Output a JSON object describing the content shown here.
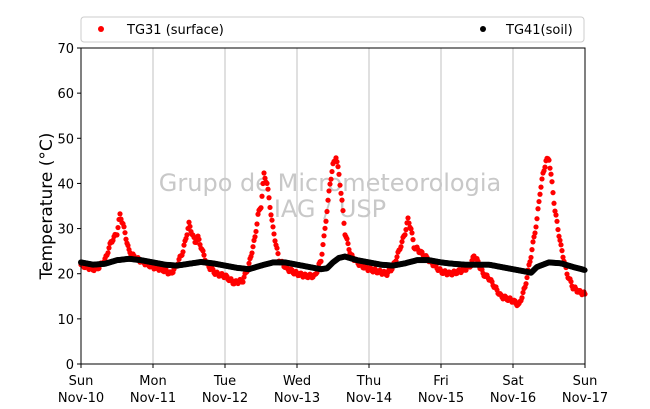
{
  "chart_data": {
    "type": "scatter",
    "title": "",
    "xlabel": "",
    "ylabel": "Temperature (°C)",
    "ylim": [
      0,
      70
    ],
    "yticks": [
      0,
      10,
      20,
      30,
      40,
      50,
      60,
      70
    ],
    "xlim_days": [
      0,
      7
    ],
    "xticks": [
      {
        "day": "Sun",
        "date": "Nov-10"
      },
      {
        "day": "Mon",
        "date": "Nov-11"
      },
      {
        "day": "Tue",
        "date": "Nov-12"
      },
      {
        "day": "Wed",
        "date": "Nov-13"
      },
      {
        "day": "Thu",
        "date": "Nov-14"
      },
      {
        "day": "Fri",
        "date": "Nov-15"
      },
      {
        "day": "Sat",
        "date": "Nov-16"
      },
      {
        "day": "Sun",
        "date": "Nov-17"
      }
    ],
    "grid": "vertical",
    "legend_position": "top",
    "watermark": [
      "Grupo de Micrometeorologia",
      "IAG / USP"
    ],
    "series": [
      {
        "name": "TG31 (surface)",
        "color": "#ff0000",
        "points": [
          [
            "Nov-10 00:00",
            22
          ],
          [
            "Nov-10 02:00",
            21.5
          ],
          [
            "Nov-10 04:00",
            21
          ],
          [
            "Nov-10 06:00",
            21.5
          ],
          [
            "Nov-10 08:00",
            23
          ],
          [
            "Nov-10 10:00",
            27
          ],
          [
            "Nov-10 12:00",
            29
          ],
          [
            "Nov-10 13:00",
            33
          ],
          [
            "Nov-10 14:00",
            31
          ],
          [
            "Nov-10 16:00",
            25
          ],
          [
            "Nov-10 18:00",
            23.5
          ],
          [
            "Nov-10 21:00",
            22.5
          ],
          [
            "Nov-11 00:00",
            21.5
          ],
          [
            "Nov-11 03:00",
            21
          ],
          [
            "Nov-11 06:00",
            20
          ],
          [
            "Nov-11 08:00",
            22
          ],
          [
            "Nov-11 10:00",
            25
          ],
          [
            "Nov-11 11:00",
            28
          ],
          [
            "Nov-11 12:00",
            31
          ],
          [
            "Nov-11 13:00",
            29
          ],
          [
            "Nov-11 14:00",
            27
          ],
          [
            "Nov-11 15:00",
            28
          ],
          [
            "Nov-11 16:00",
            26
          ],
          [
            "Nov-11 18:00",
            22
          ],
          [
            "Nov-11 21:00",
            20
          ],
          [
            "Nov-12 00:00",
            19.5
          ],
          [
            "Nov-12 03:00",
            18
          ],
          [
            "Nov-12 06:00",
            18.5
          ],
          [
            "Nov-12 08:00",
            22
          ],
          [
            "Nov-12 10:00",
            28
          ],
          [
            "Nov-12 11:00",
            33
          ],
          [
            "Nov-12 12:00",
            35
          ],
          [
            "Nov-12 13:00",
            42
          ],
          [
            "Nov-12 14:00",
            40
          ],
          [
            "Nov-12 16:00",
            30
          ],
          [
            "Nov-12 18:00",
            23
          ],
          [
            "Nov-12 21:00",
            21
          ],
          [
            "Nov-13 00:00",
            20
          ],
          [
            "Nov-13 03:00",
            19.5
          ],
          [
            "Nov-13 06:00",
            19.5
          ],
          [
            "Nov-13 08:00",
            23
          ],
          [
            "Nov-13 09:00",
            28
          ],
          [
            "Nov-13 10:00",
            34
          ],
          [
            "Nov-13 11:00",
            40
          ],
          [
            "Nov-13 12:00",
            44
          ],
          [
            "Nov-13 13:00",
            46
          ],
          [
            "Nov-13 14:00",
            42
          ],
          [
            "Nov-13 15:00",
            36
          ],
          [
            "Nov-13 16:00",
            29
          ],
          [
            "Nov-13 18:00",
            24
          ],
          [
            "Nov-13 21:00",
            22
          ],
          [
            "Nov-14 00:00",
            21
          ],
          [
            "Nov-14 03:00",
            20.5
          ],
          [
            "Nov-14 06:00",
            20
          ],
          [
            "Nov-14 08:00",
            21.5
          ],
          [
            "Nov-14 10:00",
            25
          ],
          [
            "Nov-14 11:00",
            27
          ],
          [
            "Nov-14 12:00",
            29
          ],
          [
            "Nov-14 13:00",
            32
          ],
          [
            "Nov-14 14:00",
            30
          ],
          [
            "Nov-14 15:00",
            26
          ],
          [
            "Nov-14 16:00",
            25.5
          ],
          [
            "Nov-15 00:00",
            20.5
          ],
          [
            "Nov-15 03:00",
            20
          ],
          [
            "Nov-15 06:00",
            20.5
          ],
          [
            "Nov-15 08:00",
            21
          ],
          [
            "Nov-15 10:00",
            22
          ],
          [
            "Nov-15 11:00",
            24
          ],
          [
            "Nov-15 12:00",
            23
          ],
          [
            "Nov-15 14:00",
            20
          ],
          [
            "Nov-15 16:00",
            19
          ],
          [
            "Nov-15 18:00",
            17
          ],
          [
            "Nov-15 20:00",
            15
          ],
          [
            "Nov-15 22:00",
            14.5
          ],
          [
            "Nov-16 00:00",
            14
          ],
          [
            "Nov-16 01:00",
            13.5
          ],
          [
            "Nov-16 02:00",
            13
          ],
          [
            "Nov-16 04:00",
            17
          ],
          [
            "Nov-16 06:00",
            24
          ],
          [
            "Nov-16 08:00",
            32
          ],
          [
            "Nov-16 09:00",
            38
          ],
          [
            "Nov-16 10:00",
            42
          ],
          [
            "Nov-16 11:00",
            45
          ],
          [
            "Nov-16 12:00",
            45.5
          ],
          [
            "Nov-16 13:00",
            40
          ],
          [
            "Nov-16 14:00",
            34
          ],
          [
            "Nov-16 16:00",
            26
          ],
          [
            "Nov-16 18:00",
            20
          ],
          [
            "Nov-16 20:00",
            17
          ],
          [
            "Nov-16 22:00",
            16
          ],
          [
            "Nov-17 00:00",
            15.5
          ]
        ]
      },
      {
        "name": "TG41(soil)",
        "color": "#000000",
        "points": [
          [
            "Nov-10 00:00",
            22.5
          ],
          [
            "Nov-10 04:00",
            22
          ],
          [
            "Nov-10 08:00",
            22.2
          ],
          [
            "Nov-10 12:00",
            23
          ],
          [
            "Nov-10 16:00",
            23.3
          ],
          [
            "Nov-10 20:00",
            23
          ],
          [
            "Nov-11 00:00",
            22.5
          ],
          [
            "Nov-11 04:00",
            22
          ],
          [
            "Nov-11 08:00",
            21.8
          ],
          [
            "Nov-11 12:00",
            22.2
          ],
          [
            "Nov-11 16:00",
            22.6
          ],
          [
            "Nov-11 20:00",
            22.3
          ],
          [
            "Nov-12 00:00",
            21.8
          ],
          [
            "Nov-12 04:00",
            21.3
          ],
          [
            "Nov-12 08:00",
            21
          ],
          [
            "Nov-12 12:00",
            21.8
          ],
          [
            "Nov-12 16:00",
            22.5
          ],
          [
            "Nov-12 20:00",
            22.5
          ],
          [
            "Nov-13 00:00",
            22
          ],
          [
            "Nov-13 04:00",
            21.5
          ],
          [
            "Nov-13 08:00",
            21
          ],
          [
            "Nov-13 10:00",
            21.2
          ],
          [
            "Nov-13 12:00",
            22.5
          ],
          [
            "Nov-13 14:00",
            23.5
          ],
          [
            "Nov-13 16:00",
            23.8
          ],
          [
            "Nov-13 20:00",
            23
          ],
          [
            "Nov-14 00:00",
            22.5
          ],
          [
            "Nov-14 04:00",
            22
          ],
          [
            "Nov-14 08:00",
            21.8
          ],
          [
            "Nov-14 12:00",
            22.3
          ],
          [
            "Nov-14 16:00",
            23
          ],
          [
            "Nov-14 20:00",
            23
          ],
          [
            "Nov-15 00:00",
            22.5
          ],
          [
            "Nov-15 04:00",
            22.2
          ],
          [
            "Nov-15 08:00",
            22
          ],
          [
            "Nov-15 12:00",
            22
          ],
          [
            "Nov-15 16:00",
            22
          ],
          [
            "Nov-15 20:00",
            21.5
          ],
          [
            "Nov-16 00:00",
            21
          ],
          [
            "Nov-16 04:00",
            20.5
          ],
          [
            "Nov-16 06:00",
            20.2
          ],
          [
            "Nov-16 08:00",
            21.5
          ],
          [
            "Nov-16 12:00",
            22.5
          ],
          [
            "Nov-16 16:00",
            22.3
          ],
          [
            "Nov-16 20:00",
            21.5
          ],
          [
            "Nov-17 00:00",
            20.8
          ]
        ]
      }
    ]
  }
}
